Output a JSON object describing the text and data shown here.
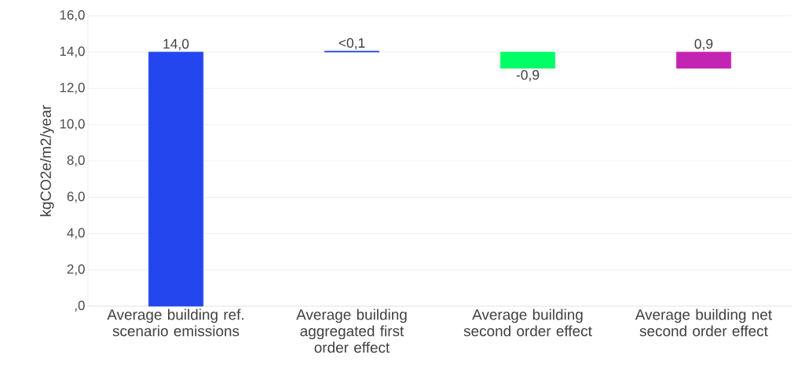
{
  "chart_data": {
    "type": "bar",
    "ylabel": "kgCO2e/m2/year",
    "categories": [
      "Average building ref. scenario emissions",
      "Average building aggregated first order effect",
      "Average building second order effect",
      "Average building net second order effect"
    ],
    "values": [
      14.0,
      0.05,
      -0.9,
      0.9
    ],
    "base": [
      0,
      14.0,
      14.0,
      13.1
    ],
    "colors": [
      "#2346ee",
      "#2346ee",
      "#00ff66",
      "#c424b4"
    ],
    "value_labels": [
      "14,0",
      "<0,1",
      "-0,9",
      "0,9"
    ],
    "ylim": [
      0,
      16
    ],
    "yticks": [
      {
        "value": 0,
        "label": ",0"
      },
      {
        "value": 2,
        "label": "2,0"
      },
      {
        "value": 4,
        "label": "4,0"
      },
      {
        "value": 6,
        "label": "6,0"
      },
      {
        "value": 8,
        "label": "8,0"
      },
      {
        "value": 10,
        "label": "10,0"
      },
      {
        "value": 12,
        "label": "12,0"
      },
      {
        "value": 14,
        "label": "14,0"
      },
      {
        "value": 16,
        "label": "16,0"
      }
    ],
    "grid": "y"
  }
}
